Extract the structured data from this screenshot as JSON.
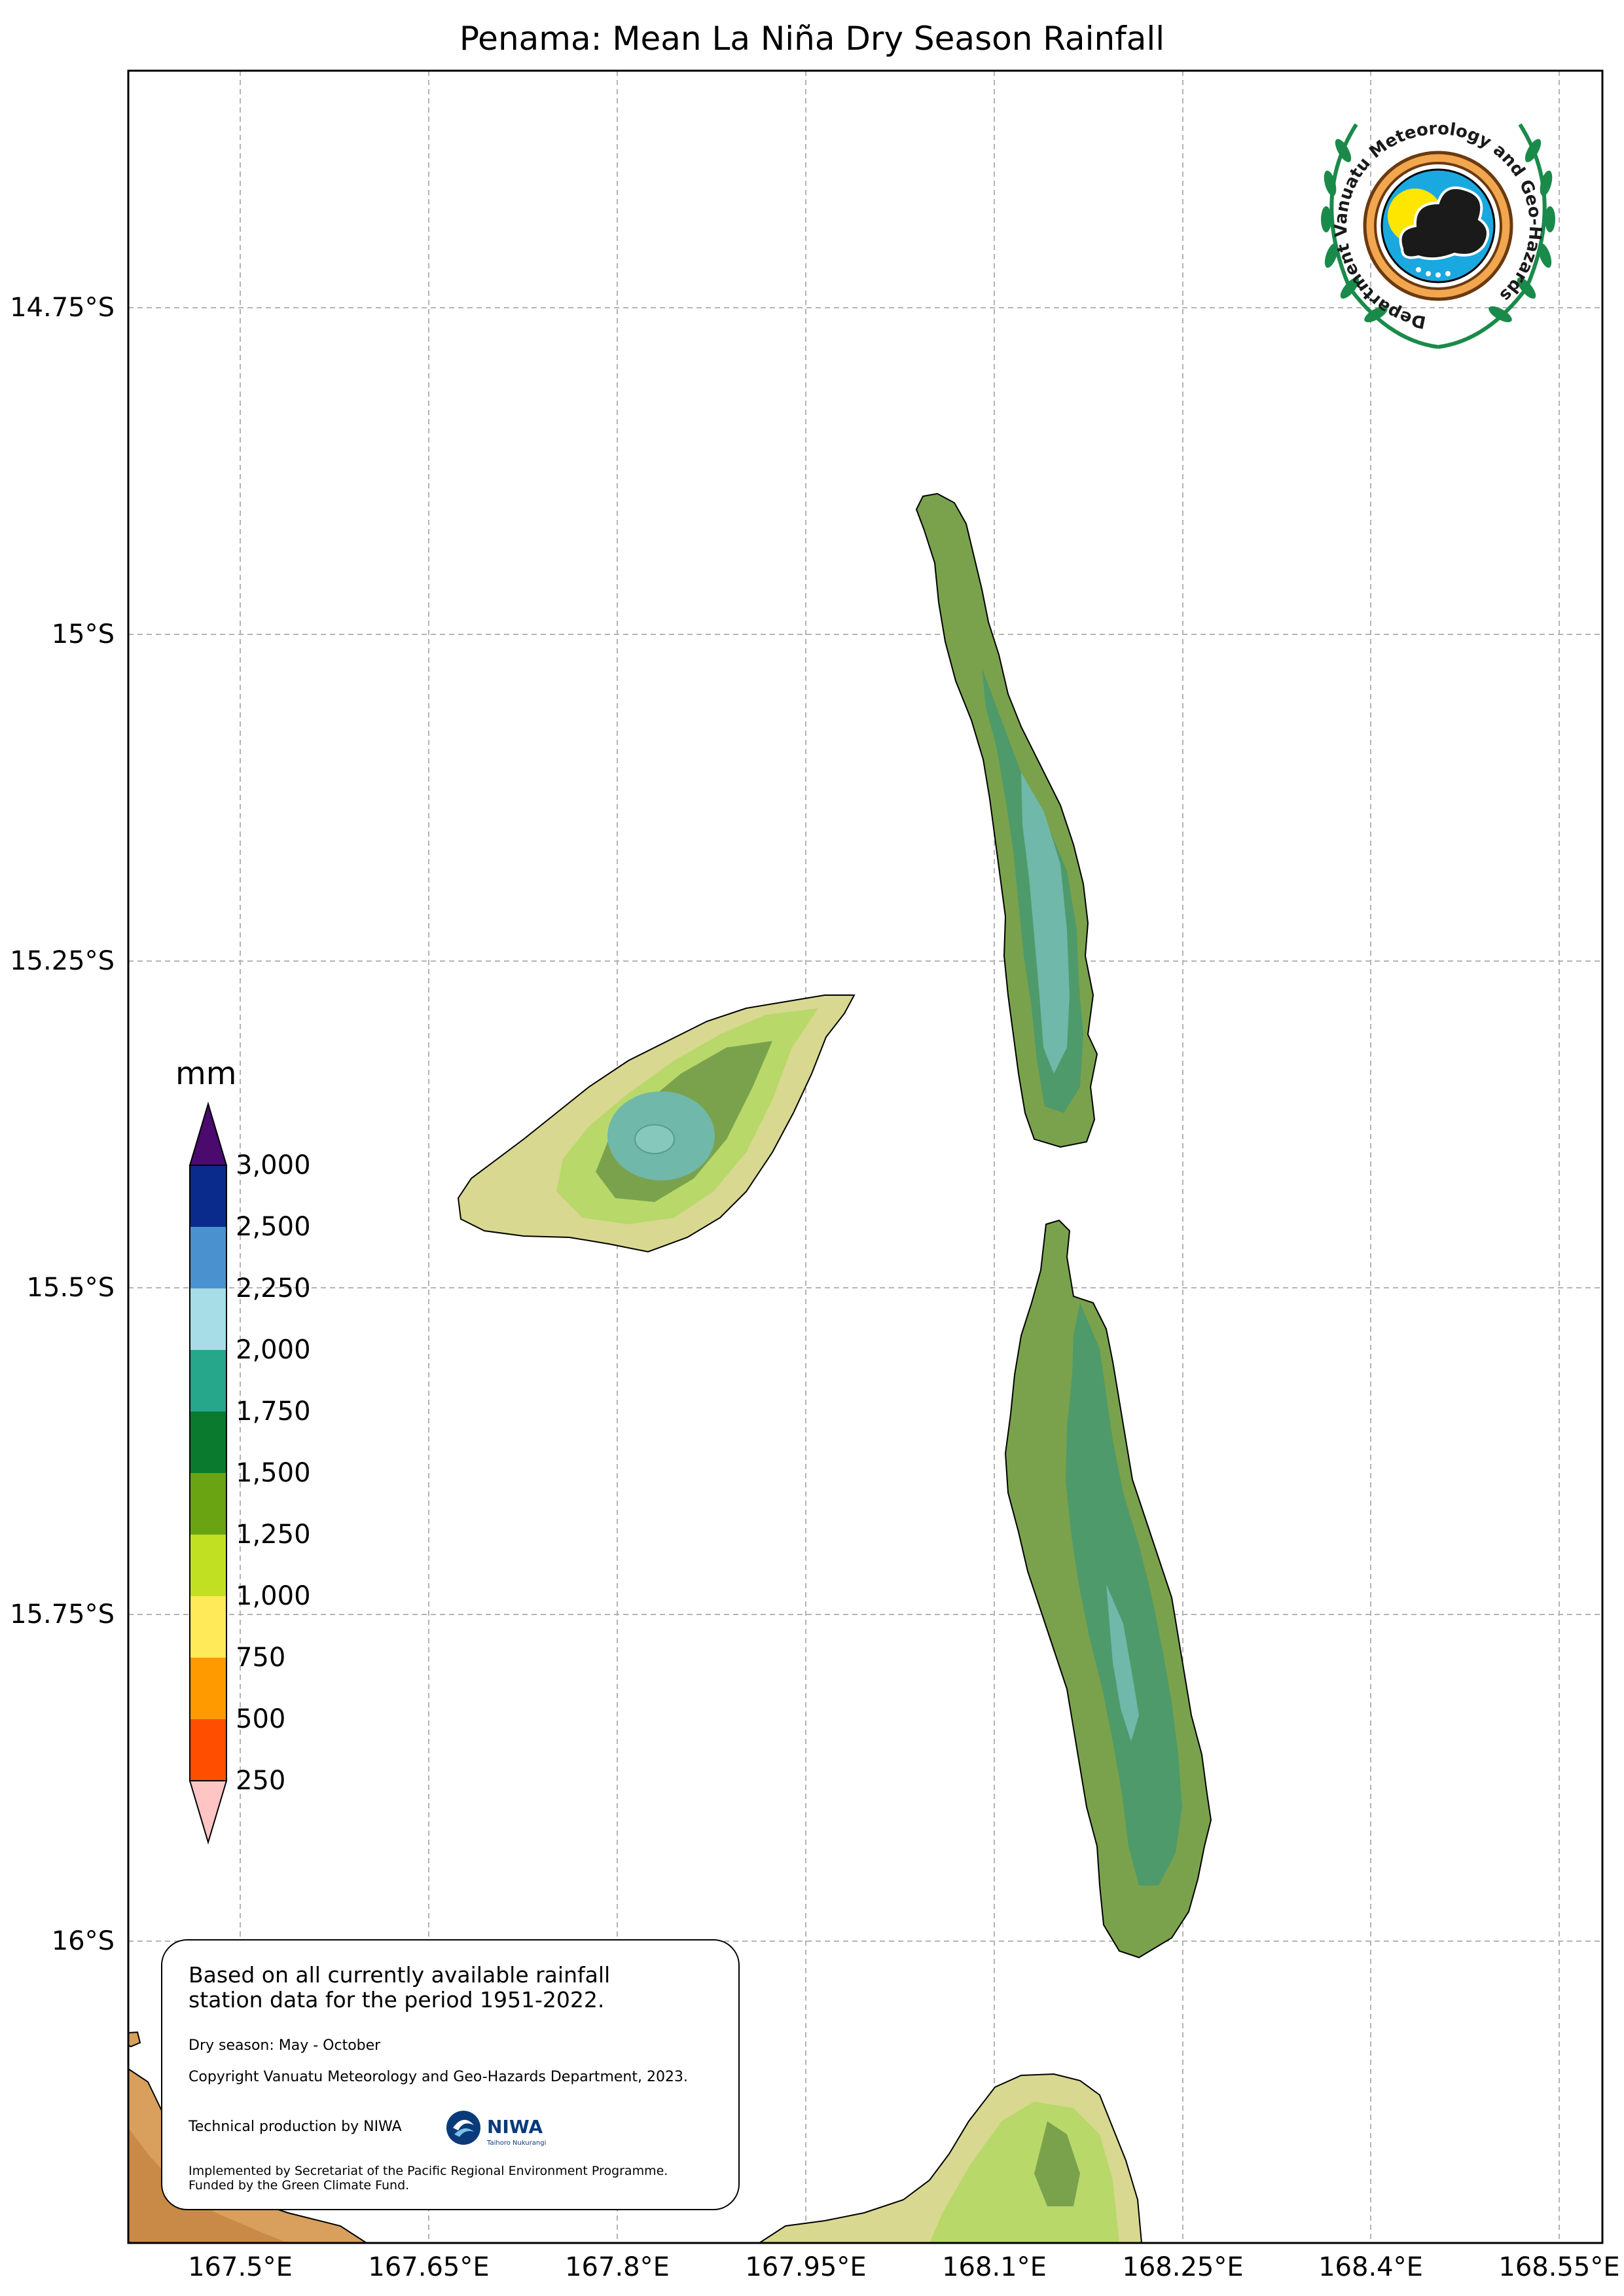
{
  "title": "Penama: Mean La Niña Dry Season Rainfall",
  "lat_labels": [
    "14.75°S",
    "15°S",
    "15.25°S",
    "15.5°S",
    "15.75°S",
    "16°S"
  ],
  "lon_labels": [
    "167.5°E",
    "167.65°E",
    "167.8°E",
    "167.95°E",
    "168.1°E",
    "168.25°E",
    "168.4°E",
    "168.55°E"
  ],
  "legend": {
    "unit": "mm",
    "ticks": [
      "3,000",
      "2,500",
      "2,250",
      "2,000",
      "1,750",
      "1,500",
      "1,250",
      "1,000",
      "750",
      "500",
      "250"
    ],
    "colors_top_to_bottom": [
      "#0a2a8c",
      "#4a92cf",
      "#a6dde6",
      "#26a68a",
      "#0a7a2e",
      "#6aa412",
      "#c2e022",
      "#ffea5a",
      "#ff9a00",
      "#ff4e00"
    ],
    "over_color": "#4a0a6e",
    "under_color": "#ffc4c4"
  },
  "info_box": {
    "main_text_line1": "Based on all currently available rainfall",
    "main_text_line2": "station data for the period 1951-2022.",
    "dry_season": "Dry season: May - October",
    "copyright": "Copyright Vanuatu Meteorology and Geo-Hazards Department, 2023.",
    "technical": "Technical production by NIWA",
    "implemented_line1": "Implemented by Secretariat of the Pacific Regional Environment Programme.",
    "implemented_line2": "Funded by the Green Climate Fund.",
    "niwa_logo_text": "NIWA",
    "niwa_logo_subtext": "Taihoro Nukurangi"
  },
  "vmgd_logo": {
    "ring_text": "Department Vanuatu Meteorology and Geo-Hazards"
  }
}
